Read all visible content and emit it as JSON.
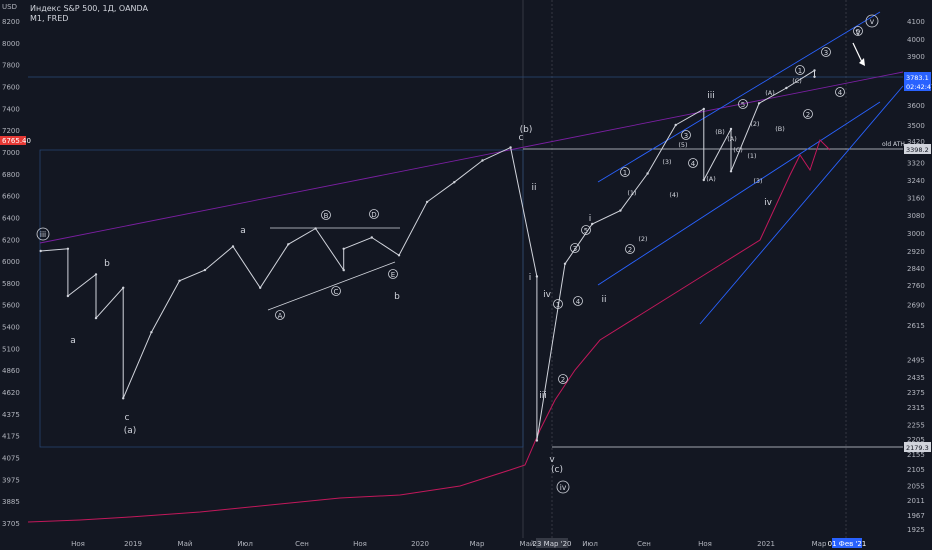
{
  "header": {
    "title": "Индекс S&P 500, 1Д, OANDA",
    "subtitle": "M1, FRED",
    "currency_label": "USD"
  },
  "colors": {
    "background": "#131722",
    "price": "#d1d4dc",
    "channel": "#2962ff",
    "m1": "#c2185b",
    "trend": "#7b1fa2",
    "label_bg": "#2962ff"
  },
  "chart_data": {
    "type": "line",
    "title": "Индекс S&P 500, 1Д, OANDA",
    "x_tick_labels": [
      "Ноя",
      "2019",
      "Май",
      "Июл",
      "Сен",
      "Ноя",
      "2020",
      "Мар",
      "Май",
      "Июл",
      "Сен",
      "Ноя",
      "2021",
      "Мар"
    ],
    "x_highlight_labels": [
      "23 Мар '20",
      "01 Фев '21"
    ],
    "left_axis": {
      "label": "USD",
      "ticks": [
        8200,
        8000,
        7800,
        7600,
        7400,
        7200,
        7000,
        6800,
        6600,
        6400,
        6200,
        6000,
        5800,
        5600,
        5400,
        5100,
        4860,
        4620,
        4375,
        4175,
        4075,
        3975,
        3885,
        3705
      ],
      "highlight": "6765.40"
    },
    "right_axis": {
      "ticks": [
        4100,
        4000,
        3900,
        3700,
        3600,
        3500,
        3420,
        3320,
        3240,
        3160,
        3080,
        3000,
        2920,
        2840,
        2760,
        2690,
        2615,
        2495,
        2435,
        2375,
        2315,
        2255,
        2205,
        2155,
        2105,
        2055,
        2011,
        1967,
        1925
      ],
      "labels": [
        "3783.1",
        "02:42:47",
        "3398.2",
        "2179.3"
      ]
    },
    "series": [
      {
        "name": "Индекс S&P 500",
        "x": [
          "2018-09",
          "2018-10",
          "2018-10",
          "2018-11",
          "2018-11",
          "2018-12",
          "2018-12",
          "2019-01",
          "2019-02",
          "2019-03",
          "2019-04",
          "2019-05",
          "2019-06",
          "2019-07",
          "2019-08",
          "2019-08",
          "2019-09",
          "2019-10",
          "2019-11",
          "2019-12",
          "2020-01",
          "2020-02",
          "2020-03",
          "2020-03",
          "2020-04",
          "2020-05",
          "2020-06",
          "2020-07",
          "2020-08",
          "2020-09",
          "2020-09",
          "2020-10",
          "2020-10",
          "2020-11",
          "2020-12",
          "2021-01",
          "2021-01"
        ],
        "values": [
          2920,
          2930,
          2720,
          2810,
          2640,
          2750,
          2350,
          2590,
          2780,
          2830,
          2940,
          2750,
          2950,
          3020,
          2830,
          2930,
          2980,
          2900,
          3140,
          3230,
          3330,
          3390,
          2800,
          2200,
          2860,
          3040,
          3100,
          3270,
          3500,
          3580,
          3240,
          3480,
          3280,
          3610,
          3700,
          3810,
          3770
        ]
      }
    ],
    "annotations": {
      "lower_latin": [
        "a",
        "b",
        "c",
        "a",
        "b",
        "c",
        "a",
        "b",
        "i",
        "ii",
        "iii",
        "iv",
        "v",
        "i",
        "ii",
        "iii",
        "iv",
        "v"
      ],
      "paren_latin": [
        "(a)",
        "(b)",
        "(c)"
      ],
      "circled_upper": [
        "A",
        "B",
        "C",
        "D",
        "E",
        "A",
        "B",
        "C",
        "D",
        "E"
      ],
      "circled_digits": [
        "1",
        "2",
        "3",
        "4",
        "5",
        "1",
        "2",
        "3",
        "4",
        "5",
        "1",
        "2",
        "3",
        "4",
        "5"
      ],
      "paren_digits": [
        "(1)",
        "(2)",
        "(3)",
        "(4)",
        "(5)",
        "(1)",
        "(2)",
        "(3)",
        "(4)",
        "(5)"
      ],
      "paren_upper": [
        "(A)",
        "(B)",
        "(C)",
        "(A)",
        "(B)",
        "(C)"
      ],
      "roman_circled": [
        "iii",
        "iv",
        "v"
      ],
      "text": [
        "old ATH"
      ]
    }
  }
}
